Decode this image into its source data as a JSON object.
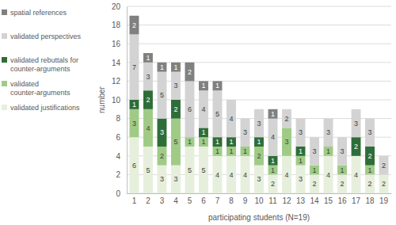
{
  "chart_data": {
    "type": "bar",
    "stacked": true,
    "data_labels": true,
    "grid": true,
    "legend": "upper left",
    "x_label": "participating students (N=19)",
    "y_label": "number",
    "categories": [
      "1",
      "2",
      "3",
      "4",
      "5",
      "6",
      "7",
      "8",
      "9",
      "10",
      "11",
      "12",
      "13",
      "14",
      "15",
      "16",
      "17",
      "18",
      "19"
    ],
    "ylim": [
      0,
      20
    ],
    "yticks": [
      0,
      2,
      4,
      6,
      8,
      10,
      12,
      14,
      16,
      18,
      20
    ],
    "series": [
      {
        "name": "validated justifications",
        "color": "#e6efdc",
        "values": [
          6,
          5,
          3,
          3,
          5,
          5,
          4,
          4,
          4,
          3,
          2,
          4,
          3,
          2,
          4,
          2,
          4,
          2,
          2
        ]
      },
      {
        "name": "validated counter-arguments",
        "color": "#9fcb86",
        "values": [
          3,
          4,
          2,
          5,
          1,
          1,
          1,
          1,
          1,
          2,
          1,
          3,
          1,
          1,
          1,
          1,
          0,
          1,
          0
        ]
      },
      {
        "name": "validated rebuttals for counter-arguments",
        "color": "#2f6d38",
        "values": [
          1,
          2,
          3,
          2,
          0,
          1,
          1,
          1,
          0,
          1,
          1,
          0,
          1,
          0,
          0,
          0,
          2,
          2,
          0
        ]
      },
      {
        "name": "validated perspectives",
        "color": "#d3d3d3",
        "values": [
          7,
          3,
          5,
          3,
          6,
          4,
          5,
          4,
          3,
          3,
          4,
          2,
          3,
          3,
          3,
          3,
          3,
          3,
          2
        ]
      },
      {
        "name": "spatial references",
        "color": "#808080",
        "values": [
          2,
          1,
          1,
          1,
          2,
          1,
          1,
          0,
          0,
          0,
          1,
          0,
          0,
          0,
          0,
          0,
          0,
          0,
          0
        ]
      }
    ]
  }
}
